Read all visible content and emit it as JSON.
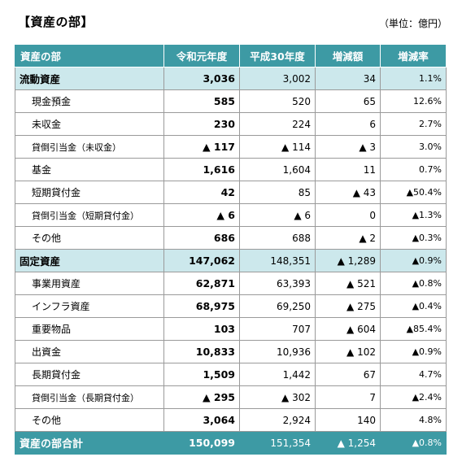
{
  "title": "【資産の部】",
  "unit": "（単位：億円）",
  "headers": [
    "資産の部",
    "令和元年度",
    "平成30年度",
    "増減額",
    "増減率"
  ],
  "rows": [
    {
      "type": "group",
      "name": "流動資産",
      "r1": "3,036",
      "h30": "3,002",
      "diff": "34",
      "rate": "1.1%"
    },
    {
      "type": "item",
      "name": "現金預金",
      "r1": "585",
      "h30": "520",
      "diff": "65",
      "rate": "12.6%"
    },
    {
      "type": "item",
      "name": "未収金",
      "r1": "230",
      "h30": "224",
      "diff": "6",
      "rate": "2.7%"
    },
    {
      "type": "item-sm",
      "name": "貸倒引当金（未収金）",
      "r1": "▲ 117",
      "h30": "▲ 114",
      "diff": "▲ 3",
      "rate": "3.0%"
    },
    {
      "type": "item",
      "name": "基金",
      "r1": "1,616",
      "h30": "1,604",
      "diff": "11",
      "rate": "0.7%"
    },
    {
      "type": "item",
      "name": "短期貸付金",
      "r1": "42",
      "h30": "85",
      "diff": "▲ 43",
      "rate": "▲50.4%"
    },
    {
      "type": "item-sm",
      "name": "貸倒引当金（短期貸付金）",
      "r1": "▲ 6",
      "h30": "▲ 6",
      "diff": "0",
      "rate": "▲1.3%"
    },
    {
      "type": "item",
      "name": "その他",
      "r1": "686",
      "h30": "688",
      "diff": "▲ 2",
      "rate": "▲0.3%"
    },
    {
      "type": "group",
      "name": "固定資産",
      "r1": "147,062",
      "h30": "148,351",
      "diff": "▲ 1,289",
      "rate": "▲0.9%"
    },
    {
      "type": "item",
      "name": "事業用資産",
      "r1": "62,871",
      "h30": "63,393",
      "diff": "▲ 521",
      "rate": "▲0.8%"
    },
    {
      "type": "item",
      "name": "インフラ資産",
      "r1": "68,975",
      "h30": "69,250",
      "diff": "▲ 275",
      "rate": "▲0.4%"
    },
    {
      "type": "item",
      "name": "重要物品",
      "r1": "103",
      "h30": "707",
      "diff": "▲ 604",
      "rate": "▲85.4%"
    },
    {
      "type": "item",
      "name": "出資金",
      "r1": "10,833",
      "h30": "10,936",
      "diff": "▲ 102",
      "rate": "▲0.9%"
    },
    {
      "type": "item",
      "name": "長期貸付金",
      "r1": "1,509",
      "h30": "1,442",
      "diff": "67",
      "rate": "4.7%"
    },
    {
      "type": "item-sm",
      "name": "貸倒引当金（長期貸付金）",
      "r1": "▲ 295",
      "h30": "▲ 302",
      "diff": "7",
      "rate": "▲2.4%"
    },
    {
      "type": "item",
      "name": "その他",
      "r1": "3,064",
      "h30": "2,924",
      "diff": "140",
      "rate": "4.8%"
    },
    {
      "type": "total",
      "name": "資産の部合計",
      "r1": "150,099",
      "h30": "151,354",
      "diff": "▲ 1,254",
      "rate": "▲0.8%"
    }
  ]
}
